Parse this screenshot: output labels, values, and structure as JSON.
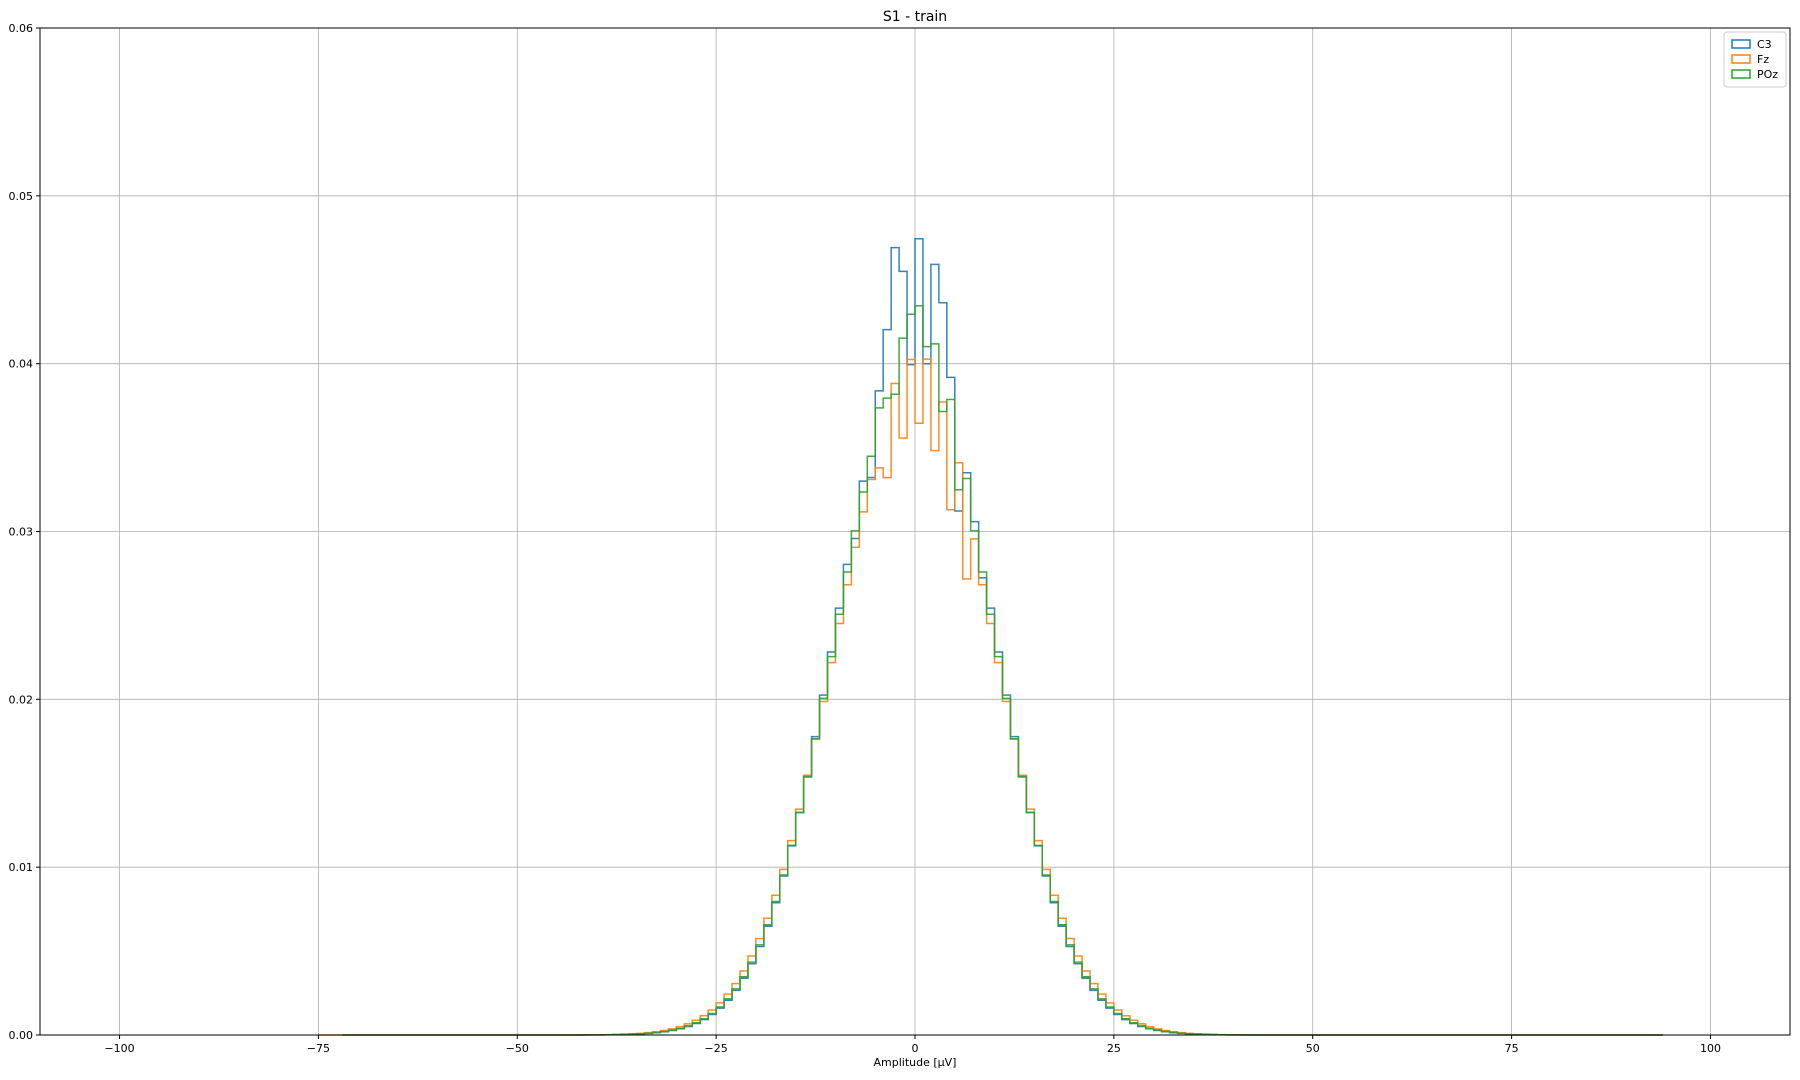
{
  "chart_data": {
    "type": "histogram-step",
    "title": "S1 - train",
    "xlabel": "Amplitude [μV]",
    "ylabel": "",
    "xlim": [
      -110,
      110
    ],
    "ylim": [
      0,
      0.06
    ],
    "xticks": [
      -100,
      -75,
      -50,
      -25,
      0,
      25,
      50,
      75,
      100
    ],
    "xtick_labels": [
      "−100",
      "−75",
      "−50",
      "−25",
      "0",
      "25",
      "50",
      "75",
      "100"
    ],
    "yticks": [
      0.0,
      0.01,
      0.02,
      0.03,
      0.04,
      0.05,
      0.06
    ],
    "ytick_labels": [
      "0.00",
      "0.01",
      "0.02",
      "0.03",
      "0.04",
      "0.05",
      "0.06"
    ],
    "grid": true,
    "legend_position": "top-right",
    "bin_width": 1,
    "series": [
      {
        "name": "C3",
        "color": "#1f77b4",
        "sigma": 9.6,
        "peak": 0.0415,
        "x_range": [
          -72,
          94
        ],
        "ripple": [
          [
            -4,
            0.0032
          ],
          [
            -3,
            0.0068
          ],
          [
            -2,
            0.0045
          ],
          [
            -1,
            -0.0015
          ],
          [
            0,
            0.006
          ],
          [
            1,
            -0.001
          ],
          [
            2,
            0.0058
          ],
          [
            3,
            0.0048
          ],
          [
            4,
            0.002
          ],
          [
            5,
            -0.004
          ],
          [
            6,
            0.0005
          ],
          [
            -6,
            -0.002
          ],
          [
            -5,
            0.0012
          ],
          [
            -8,
            -0.001
          ],
          [
            8,
            -0.0008
          ]
        ]
      },
      {
        "name": "Fz",
        "color": "#ff7f0e",
        "sigma": 10.0,
        "peak": 0.0385,
        "x_range": [
          -75,
          94
        ],
        "ripple": [
          [
            -4,
            -0.003
          ],
          [
            -3,
            0.0015
          ],
          [
            -2,
            -0.0025
          ],
          [
            -1,
            0.0018
          ],
          [
            0,
            -0.002
          ],
          [
            1,
            0.0022
          ],
          [
            2,
            -0.0025
          ],
          [
            3,
            0.0015
          ],
          [
            4,
            -0.0035
          ],
          [
            5,
            0.001
          ],
          [
            6,
            -0.004
          ],
          [
            7,
            0.0005
          ],
          [
            -5,
            -0.001
          ]
        ]
      },
      {
        "name": "POz",
        "color": "#2ca02c",
        "sigma": 9.7,
        "peak": 0.0405,
        "x_range": [
          -72,
          94
        ],
        "ripple": [
          [
            -3,
            -0.001
          ],
          [
            -2,
            0.0015
          ],
          [
            -1,
            0.0025
          ],
          [
            0,
            0.003
          ],
          [
            1,
            0.001
          ],
          [
            2,
            0.002
          ],
          [
            3,
            -0.0008
          ],
          [
            4,
            0.0015
          ],
          [
            5,
            -0.002
          ],
          [
            6,
            0.0008
          ],
          [
            -5,
            0.001
          ]
        ]
      }
    ]
  }
}
